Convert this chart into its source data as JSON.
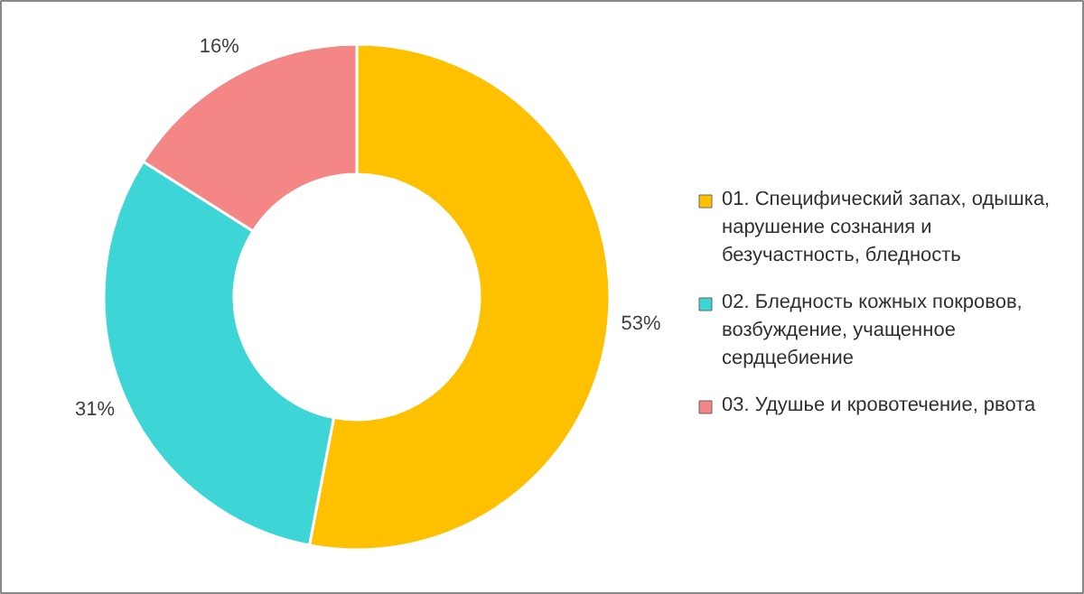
{
  "chart_data": {
    "type": "donut",
    "categories": [
      "01. Специфический запах, одышка, нарушение сознания и безучастность, бледность",
      "02. Бледность кожных покровов, возбуждение, учащенное сердцебиение",
      "03. Удушье и кровотечение, рвота"
    ],
    "values": [
      53,
      31,
      16
    ],
    "colors": [
      "#ffc000",
      "#3dd5d5",
      "#f48686"
    ],
    "value_labels": [
      "53%",
      "31%",
      "16%"
    ],
    "legend": "right"
  }
}
